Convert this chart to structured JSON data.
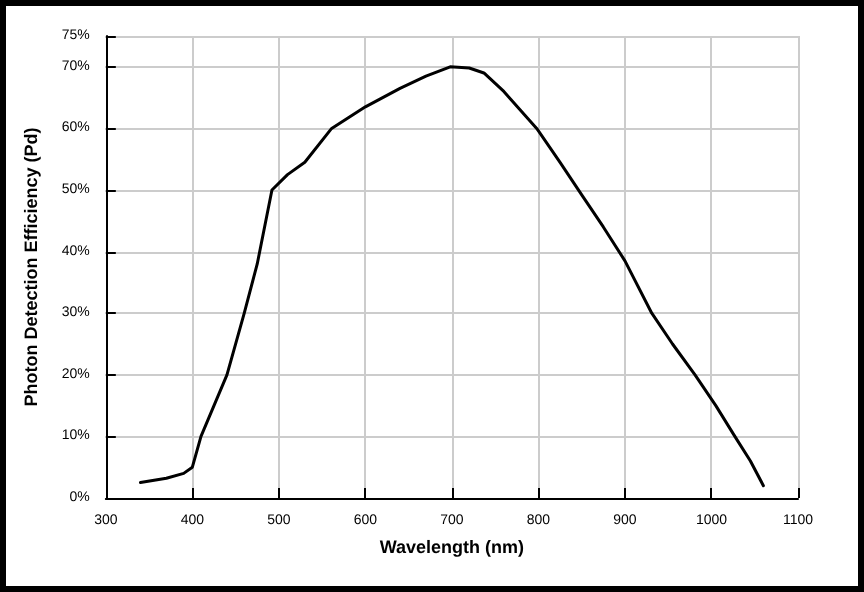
{
  "chart_data": {
    "type": "line",
    "xlabel": "Wavelength (nm)",
    "ylabel": "Photon Detection Efficiency (Pd)",
    "color": "#000000",
    "x": [
      340,
      370,
      390,
      400,
      410,
      425,
      440,
      460,
      475,
      492,
      510,
      530,
      561,
      600,
      640,
      670,
      698,
      720,
      737,
      760,
      798,
      825,
      851,
      875,
      900,
      931,
      955,
      981,
      1005,
      1027,
      1045,
      1060
    ],
    "values": [
      2.5,
      3.2,
      4,
      5,
      10,
      15,
      20,
      30,
      38,
      50,
      52.5,
      54.5,
      60,
      63.5,
      66.5,
      68.5,
      70,
      69.8,
      69,
      66,
      60,
      54.5,
      49,
      44,
      38.5,
      30,
      25,
      20,
      15,
      10,
      6,
      2
    ],
    "xlim": [
      300,
      1100
    ],
    "xticks": [
      300,
      400,
      500,
      600,
      700,
      800,
      900,
      1000,
      1100
    ],
    "ylim": [
      0,
      75
    ],
    "yticks": [
      {
        "value": 0,
        "label": "0%"
      },
      {
        "value": 10,
        "label": "10%"
      },
      {
        "value": 20,
        "label": "20%"
      },
      {
        "value": 30,
        "label": "30%"
      },
      {
        "value": 40,
        "label": "40%"
      },
      {
        "value": 50,
        "label": "50%"
      },
      {
        "value": 60,
        "label": "60%"
      },
      {
        "value": 70,
        "label": "70%"
      },
      {
        "value": 75,
        "label": "75%"
      }
    ],
    "grid": true,
    "marker": "none",
    "line_style": "solid"
  }
}
